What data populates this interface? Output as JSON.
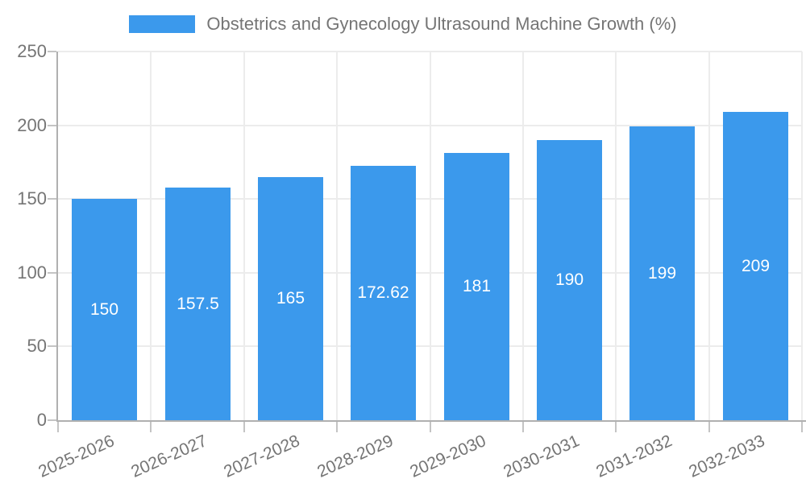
{
  "legend": {
    "label": "Obstetrics and Gynecology Ultrasound Machine Growth (%)",
    "swatch_color": "#3b99ec"
  },
  "colors": {
    "bar": "#3b99ec",
    "grid": "#ececec",
    "axis": "#b0b0b0",
    "tick": "#c4c4c4",
    "axis_text": "#757575",
    "value_label_text": "#ffffff",
    "background": "#ffffff"
  },
  "chart_data": {
    "type": "bar",
    "title": "Obstetrics and Gynecology Ultrasound Machine Growth (%)",
    "categories": [
      "2025-2026",
      "2026-2027",
      "2027-2028",
      "2028-2029",
      "2029-2030",
      "2030-2031",
      "2031-2032",
      "2032-2033"
    ],
    "series": [
      {
        "name": "Obstetrics and Gynecology Ultrasound Machine Growth (%)",
        "values": [
          150,
          157.5,
          165,
          172.62,
          181,
          190,
          199,
          209
        ]
      }
    ],
    "value_labels": [
      "150",
      "157.5",
      "165",
      "172.62",
      "181",
      "190",
      "199",
      "209"
    ],
    "value_label_position": "inside-center",
    "xlabel": "",
    "ylabel": "",
    "ylim": [
      0,
      250
    ],
    "yticks": [
      0,
      50,
      100,
      150,
      200,
      250
    ],
    "grid": true,
    "legend_position": "top-center",
    "x_label_rotation_deg": -24
  }
}
